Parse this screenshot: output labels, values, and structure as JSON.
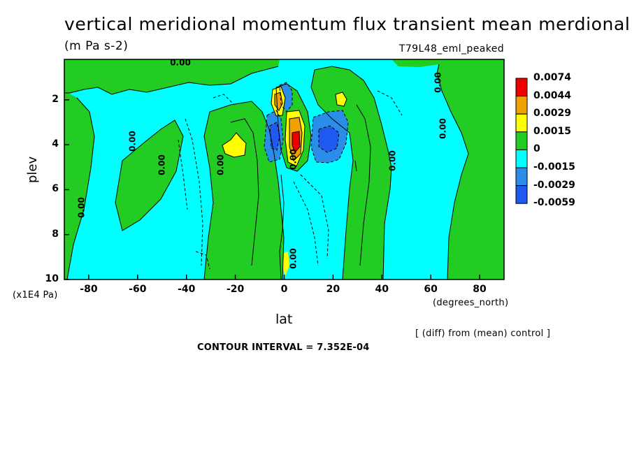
{
  "title": "vertical meridional momentum flux transient mean merdional",
  "units": "(m Pa s-2)",
  "run_name": "T79L48_eml_peaked",
  "diff_note": "[ (diff) from (mean) control ]",
  "contour_interval": "CONTOUR INTERVAL = 7.352E-04",
  "colors": {
    "red": "#ee0000",
    "orange": "#f0a000",
    "yellow": "#ffff00",
    "green": "#22cc22",
    "cyan": "#00ffff",
    "mid_blue": "#2a8ee8",
    "dark_blue": "#1e5aef"
  },
  "chart_data": {
    "type": "heatmap",
    "title": "vertical meridional momentum flux transient mean merdional",
    "xlabel": "lat",
    "xunits": "(degrees_north)",
    "ylabel": "plev",
    "yunits": "(x1E4 Pa)",
    "xlim": [
      -90,
      90
    ],
    "ylim": [
      10,
      0.2
    ],
    "xticks": [
      "-80",
      "-60",
      "-40",
      "-20",
      "0",
      "20",
      "40",
      "60",
      "80"
    ],
    "yticks": [
      "2",
      "4",
      "6",
      "8",
      "10"
    ],
    "contour_label": "0.00",
    "legend": {
      "levels": [
        "0.0074",
        "0.0044",
        "0.0029",
        "0.0015",
        "0",
        "-0.0015",
        "-0.0029",
        "-0.0059"
      ],
      "colors": [
        "#ee0000",
        "#f0a000",
        "#ffff00",
        "#22cc22",
        "#00ffff",
        "#2a8ee8",
        "#1e5aef"
      ]
    }
  }
}
